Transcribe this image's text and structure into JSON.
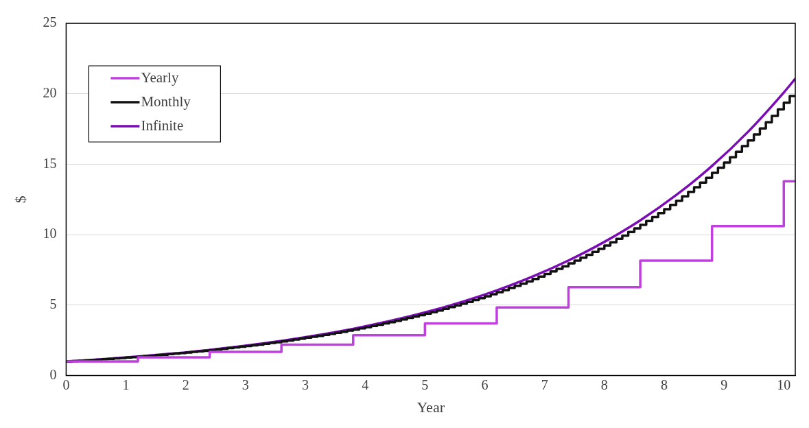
{
  "chart_data": {
    "type": "line",
    "xlabel": "Year",
    "ylabel": "$",
    "xlim": [
      0,
      10.16
    ],
    "ylim": [
      0,
      25
    ],
    "xticks": [
      0,
      {
        "value": 0.833,
        "label": "1"
      },
      {
        "value": 1.667,
        "label": "2"
      },
      {
        "value": 2.5,
        "label": "3"
      },
      {
        "value": 3.333,
        "label": "3"
      },
      {
        "value": 4.167,
        "label": "4"
      },
      5,
      {
        "value": 5.833,
        "label": "6"
      },
      {
        "value": 6.667,
        "label": "7"
      },
      {
        "value": 7.5,
        "label": "8"
      },
      {
        "value": 8.333,
        "label": "8"
      },
      {
        "value": 9.167,
        "label": "9"
      },
      10
    ],
    "yticks": [
      0,
      5,
      10,
      15,
      20,
      25
    ],
    "grid": "y",
    "legend": "top left",
    "marker": "none",
    "line_style": "solid",
    "series": [
      {
        "name": "Yearly",
        "type": "step",
        "color": "#bf3fdf",
        "x": [
          0,
          1,
          2,
          3,
          4,
          5,
          6,
          7,
          8,
          9,
          10,
          10.16
        ],
        "values": [
          1,
          1.3,
          1.69,
          2.2,
          2.86,
          3.71,
          4.83,
          6.27,
          8.16,
          10.6,
          13.79,
          13.79
        ]
      },
      {
        "name": "Monthly",
        "type": "step",
        "color": "#111111",
        "x": [
          0,
          0.083,
          0.167,
          0.25,
          0.333,
          0.417,
          0.5,
          0.583,
          0.667,
          0.75,
          0.833,
          0.917,
          1,
          1.083,
          1.167,
          1.25,
          1.333,
          1.417,
          1.5,
          1.583,
          1.667,
          1.75,
          1.833,
          1.917,
          2,
          2.083,
          2.167,
          2.25,
          2.333,
          2.417,
          2.5,
          2.583,
          2.667,
          2.75,
          2.833,
          2.917,
          3,
          3.083,
          3.167,
          3.25,
          3.333,
          3.417,
          3.5,
          3.583,
          3.667,
          3.75,
          3.833,
          3.917,
          4,
          4.083,
          4.167,
          4.25,
          4.333,
          4.417,
          4.5,
          4.583,
          4.667,
          4.75,
          4.833,
          4.917,
          5,
          5.083,
          5.167,
          5.25,
          5.333,
          5.417,
          5.5,
          5.583,
          5.667,
          5.75,
          5.833,
          5.917,
          6,
          6.083,
          6.167,
          6.25,
          6.333,
          6.417,
          6.5,
          6.583,
          6.667,
          6.75,
          6.833,
          6.917,
          7,
          7.083,
          7.167,
          7.25,
          7.333,
          7.417,
          7.5,
          7.583,
          7.667,
          7.75,
          7.833,
          7.917,
          8,
          8.083,
          8.167,
          8.25,
          8.333,
          8.417,
          8.5,
          8.583,
          8.667,
          8.75,
          8.833,
          8.917,
          9,
          9.083,
          9.167,
          9.25,
          9.333,
          9.417,
          9.5,
          9.583,
          9.667,
          9.75,
          9.833,
          9.917,
          10,
          10.083,
          10.16
        ],
        "values": [
          1,
          1.03,
          1.05,
          1.08,
          1.1,
          1.13,
          1.16,
          1.19,
          1.22,
          1.25,
          1.28,
          1.31,
          1.34,
          1.38,
          1.41,
          1.45,
          1.48,
          1.52,
          1.56,
          1.6,
          1.64,
          1.68,
          1.72,
          1.76,
          1.81,
          1.85,
          1.9,
          1.95,
          2,
          2.05,
          2.1,
          2.15,
          2.2,
          2.26,
          2.32,
          2.37,
          2.43,
          2.49,
          2.56,
          2.62,
          2.69,
          2.75,
          2.82,
          2.89,
          2.96,
          3.04,
          3.11,
          3.19,
          3.27,
          3.35,
          3.44,
          3.52,
          3.61,
          3.7,
          3.79,
          3.89,
          3.99,
          4.09,
          4.19,
          4.29,
          4.4,
          4.51,
          4.62,
          4.74,
          4.86,
          4.98,
          5.1,
          5.23,
          5.36,
          5.49,
          5.63,
          5.77,
          5.92,
          6.07,
          6.22,
          6.37,
          6.53,
          6.69,
          6.86,
          7.03,
          7.21,
          7.39,
          7.57,
          7.76,
          7.96,
          8.16,
          8.36,
          8.57,
          8.78,
          9,
          9.23,
          9.46,
          9.7,
          9.94,
          10.19,
          10.44,
          10.7,
          10.97,
          11.25,
          11.53,
          11.81,
          12.11,
          12.41,
          12.72,
          13.04,
          13.37,
          13.7,
          14.04,
          14.39,
          14.75,
          15.12,
          15.5,
          15.89,
          16.29,
          16.69,
          17.11,
          17.54,
          17.98,
          18.43,
          18.89,
          19.36,
          19.84,
          19.84
        ]
      },
      {
        "name": "Infinite",
        "type": "line",
        "color": "#7a0bb5",
        "x": [
          0,
          0.5,
          1,
          1.5,
          2,
          2.5,
          3,
          3.5,
          4,
          4.5,
          5,
          5.5,
          6,
          6.5,
          7,
          7.5,
          8,
          8.5,
          9,
          9.5,
          10,
          10.16
        ],
        "values": [
          1,
          1.16,
          1.35,
          1.57,
          1.82,
          2.12,
          2.46,
          2.86,
          3.32,
          3.86,
          4.48,
          5.21,
          6.05,
          7.03,
          8.17,
          9.49,
          11.02,
          12.81,
          14.88,
          17.29,
          20.09,
          21.07
        ]
      }
    ]
  }
}
